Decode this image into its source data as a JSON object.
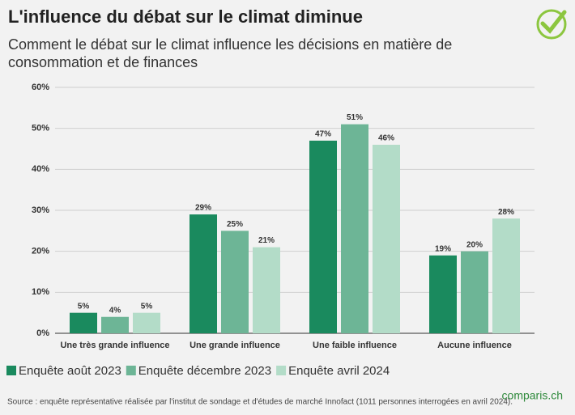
{
  "chart_data": {
    "type": "bar",
    "title": "L'influence du débat sur le climat diminue",
    "subtitle": [
      "Comment le débat sur le climat influence les décisions en matière de",
      "consommation et de finances"
    ],
    "categories": [
      "Une très grande influence",
      "Une grande influence",
      "Une faible influence",
      "Aucune influence"
    ],
    "series": [
      {
        "name": "Enquête août 2023",
        "color": "#1a8a5e",
        "values": [
          5,
          29,
          47,
          19
        ],
        "value_labels": [
          "5%",
          "29%",
          "47%",
          "19%"
        ]
      },
      {
        "name": "Enquête décembre 2023",
        "color": "#6db596",
        "values": [
          4,
          25,
          51,
          20
        ],
        "value_labels": [
          "4%",
          "25%",
          "51%",
          "20%"
        ]
      },
      {
        "name": "Enquête avril 2024",
        "color": "#b3dcc8",
        "values": [
          5,
          21,
          46,
          28
        ],
        "value_labels": [
          "5%",
          "21%",
          "46%",
          "28%"
        ]
      }
    ],
    "ylim": [
      0,
      60
    ],
    "yticks": [
      {
        "value": 0,
        "label": "0%"
      },
      {
        "value": 10,
        "label": "10%"
      },
      {
        "value": 20,
        "label": "20%"
      },
      {
        "value": 30,
        "label": "30%"
      },
      {
        "value": 40,
        "label": "40%"
      },
      {
        "value": 50,
        "label": "50%"
      },
      {
        "value": 60,
        "label": "60%"
      }
    ],
    "grid": true,
    "legend": "bottom",
    "source": "Source : enquête représentative réalisée par l'institut de sondage et d'études de marché Innofact (1011 personnes interrogées en avril 2024).",
    "brand": "comparis.ch"
  }
}
